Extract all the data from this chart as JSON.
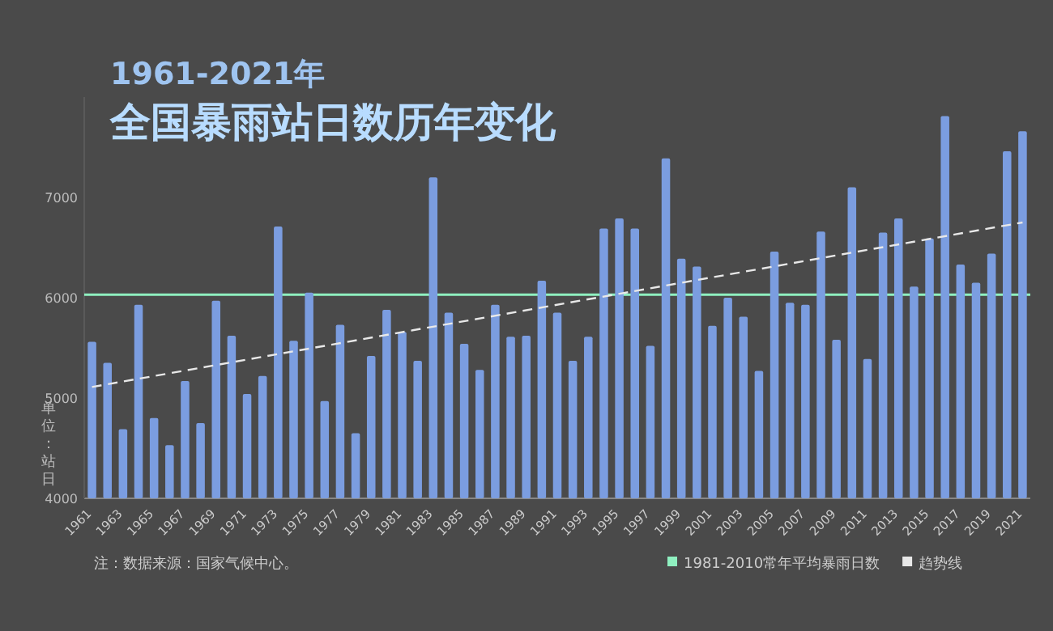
{
  "chart_data": {
    "type": "bar",
    "title": "全国暴雨站日数历年变化",
    "subtitle": "1961-2021年",
    "ylabel": "单位：站日",
    "x": [
      1961,
      1962,
      1963,
      1964,
      1965,
      1966,
      1967,
      1968,
      1969,
      1970,
      1971,
      1972,
      1973,
      1974,
      1975,
      1976,
      1977,
      1978,
      1979,
      1980,
      1981,
      1982,
      1983,
      1984,
      1985,
      1986,
      1987,
      1988,
      1989,
      1990,
      1991,
      1992,
      1993,
      1994,
      1995,
      1996,
      1997,
      1998,
      1999,
      2000,
      2001,
      2002,
      2003,
      2004,
      2005,
      2006,
      2007,
      2008,
      2009,
      2010,
      2011,
      2012,
      2013,
      2014,
      2015,
      2016,
      2017,
      2018,
      2019,
      2020,
      2021
    ],
    "xlim": [
      1960.5,
      2021.5
    ],
    "xticks": [
      1961,
      1963,
      1965,
      1967,
      1969,
      1971,
      1973,
      1975,
      1977,
      1979,
      1981,
      1983,
      1985,
      1987,
      1989,
      1991,
      1993,
      1995,
      1997,
      1999,
      2001,
      2003,
      2005,
      2007,
      2009,
      2011,
      2013,
      2015,
      2017,
      2019,
      2021
    ],
    "series": [
      {
        "color": "#7b9de0",
        "values": [
          5560,
          5350,
          4690,
          5930,
          4800,
          4530,
          5170,
          4750,
          5970,
          5620,
          5040,
          5220,
          6710,
          5570,
          6050,
          4970,
          5730,
          4650,
          5420,
          5880,
          5660,
          5370,
          7200,
          5850,
          5540,
          5280,
          5930,
          5610,
          5620,
          6170,
          5850,
          5370,
          5610,
          6690,
          6790,
          6690,
          5520,
          7390,
          6390,
          6310,
          5720,
          6000,
          5810,
          5270,
          6460,
          5950,
          5930,
          6660,
          5580,
          7100,
          5390,
          6650,
          6790,
          6110,
          6590,
          7810,
          6330,
          6150,
          6440,
          7460,
          7660
        ]
      },
      {
        "type": "line",
        "name": "趋势线",
        "color": "#e8e8e8",
        "line_style": "dashed",
        "x": [
          1961,
          2021
        ],
        "values": [
          5110,
          6750
        ]
      }
    ],
    "ylim": [
      4000,
      8000
    ],
    "yticks": [
      4000,
      5000,
      6000,
      7000
    ],
    "ref_lines": [
      {
        "axis": "y",
        "value": 6030,
        "label": "1981-2010常年平均暴雨日数",
        "color": "#8ff0c0"
      }
    ],
    "legend": "bottom right",
    "annotations": [
      "注：数据来源：国家气候中心。"
    ]
  }
}
